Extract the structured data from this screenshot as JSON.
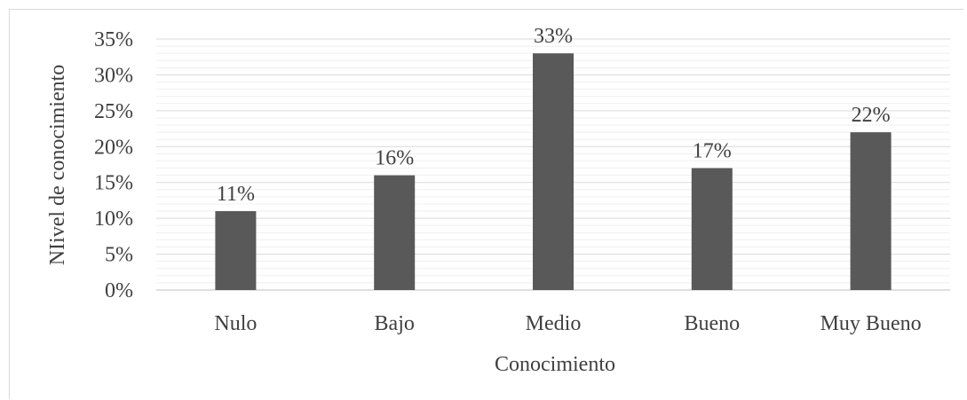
{
  "chart_data": {
    "type": "bar",
    "categories": [
      "Nulo",
      "Bajo",
      "Medio",
      "Bueno",
      "Muy Bueno"
    ],
    "values": [
      11,
      16,
      33,
      17,
      22
    ],
    "data_labels": [
      "11%",
      "16%",
      "33%",
      "17%",
      "22%"
    ],
    "title": "",
    "xlabel": "Conocimiento",
    "ylabel": "NIivel de conocimiento",
    "ylim": [
      0,
      35
    ],
    "yticks": [
      0,
      5,
      10,
      15,
      20,
      25,
      30,
      35
    ],
    "ytick_labels": [
      "0%",
      "5%",
      "10%",
      "15%",
      "20%",
      "25%",
      "30%",
      "35%"
    ],
    "grid": true,
    "bar_color": "#595959",
    "grid_color": "#d9d9d9"
  }
}
